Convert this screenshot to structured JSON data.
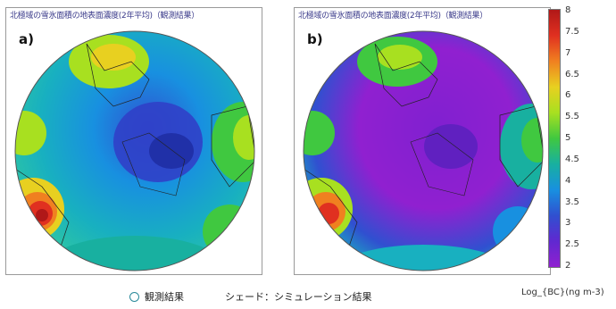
{
  "panels": [
    {
      "letter": "a)",
      "title": "北極域の雪氷面積の地表面濃度(2年平均)（観測結果）"
    },
    {
      "letter": "b)",
      "title": "北極域の雪氷面積の地表面濃度(2年平均)（観測結果）"
    }
  ],
  "colorbar": {
    "ticks": [
      "8",
      "7.5",
      "7",
      "6.5",
      "6",
      "5.5",
      "5",
      "4.5",
      "4",
      "3.5",
      "3",
      "2.5",
      "2"
    ],
    "unit": "Log_{BC}(ng m-3)"
  },
  "legend": {
    "observed_label": "観測結果",
    "shade_label": "シェード：シミュレーション結果"
  },
  "colors": {
    "scale": [
      "#b01818",
      "#e03020",
      "#f08020",
      "#e8d020",
      "#a8e020",
      "#40c840",
      "#18b0a0",
      "#1890e0",
      "#3050d0",
      "#6028d0",
      "#9020d0"
    ]
  }
}
